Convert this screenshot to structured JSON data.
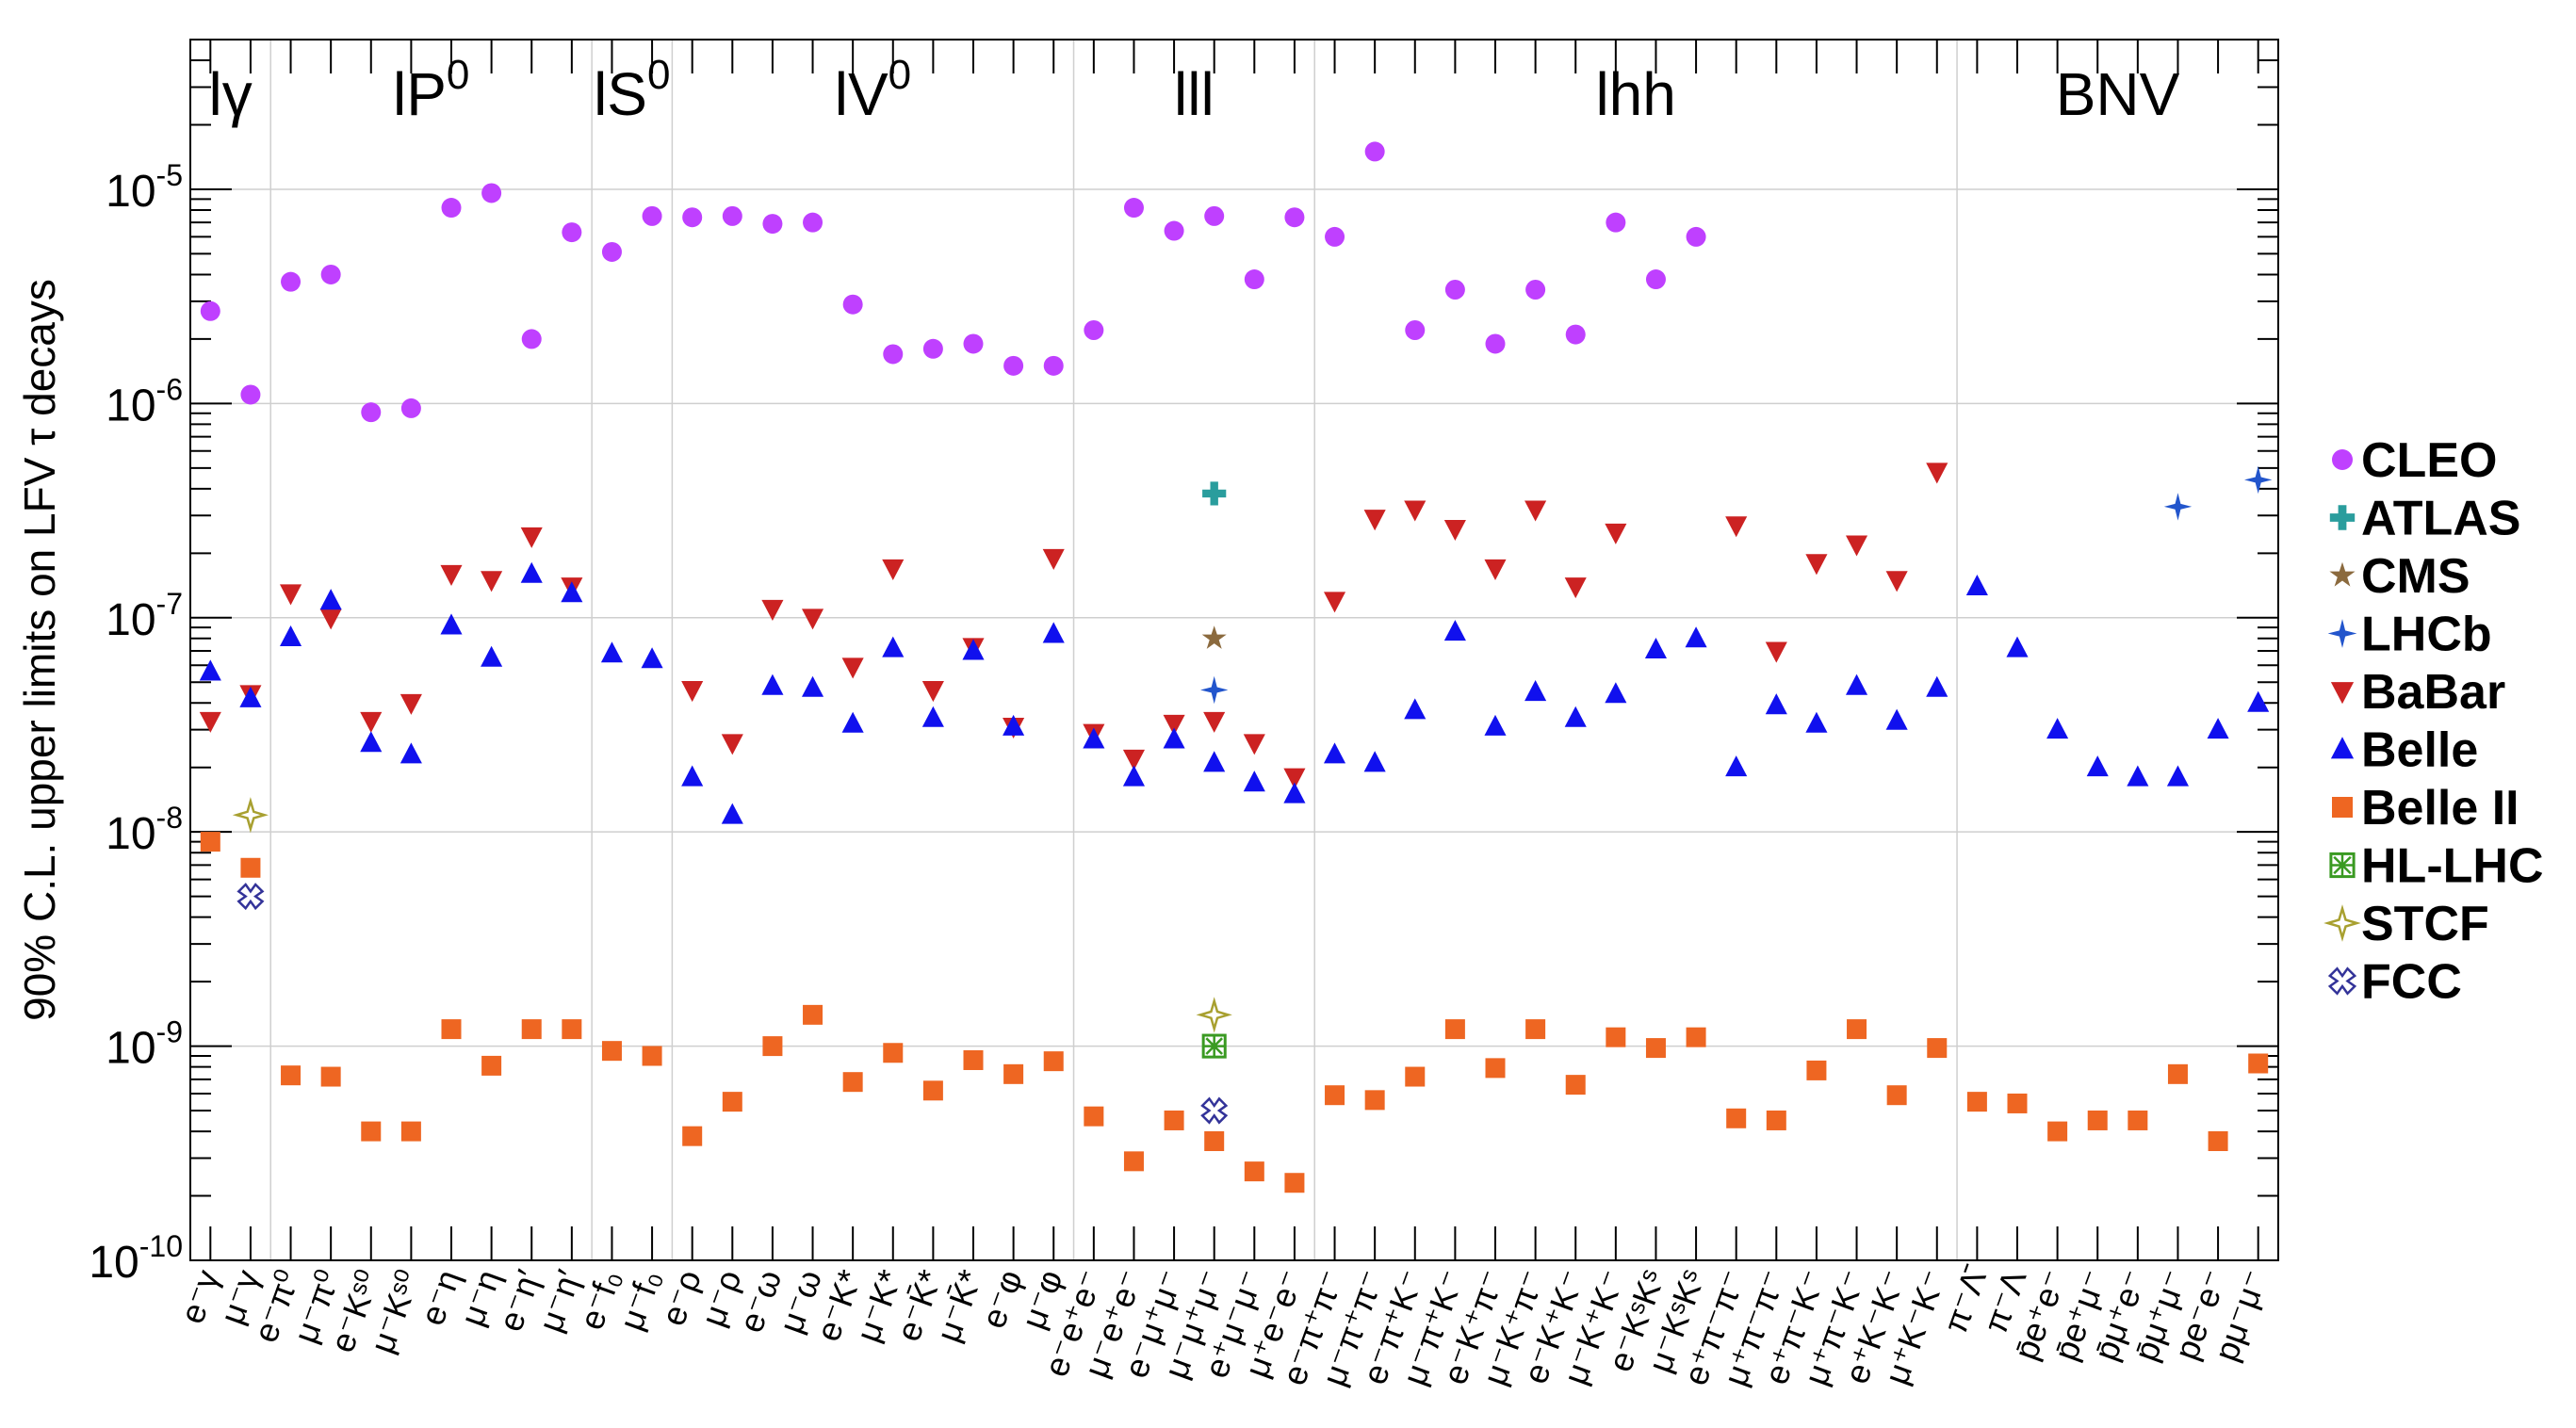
{
  "chart_data": {
    "type": "scatter",
    "ylabel": "90% C.L. upper limits on LFV τ decays",
    "yscale": "log",
    "ylim": [
      1e-10,
      5e-05
    ],
    "ytick_labels": [
      "10^-10",
      "10^-9",
      "10^-8",
      "10^-7",
      "10^-6",
      "10^-5"
    ],
    "groups": [
      {
        "label": "lγ",
        "base": "lγ",
        "sup": "",
        "range": [
          0,
          2
        ]
      },
      {
        "label": "lP0",
        "base": "lP",
        "sup": "0",
        "range": [
          2,
          10
        ]
      },
      {
        "label": "lS0",
        "base": "lS",
        "sup": "0",
        "range": [
          10,
          12
        ]
      },
      {
        "label": "lV0",
        "base": "lV",
        "sup": "0",
        "range": [
          12,
          22
        ]
      },
      {
        "label": "lll",
        "base": "lll",
        "sup": "",
        "range": [
          22,
          28
        ]
      },
      {
        "label": "lhh",
        "base": "lhh",
        "sup": "",
        "range": [
          28,
          44
        ]
      },
      {
        "label": "BNV",
        "base": "BNV",
        "sup": "",
        "range": [
          44,
          52
        ]
      }
    ],
    "categories": [
      "e⁻γ",
      "μ⁻γ",
      "e⁻π⁰",
      "μ⁻π⁰",
      "e⁻Kˢ⁰",
      "μ⁻Kˢ⁰",
      "e⁻η",
      "μ⁻η",
      "e⁻η′",
      "μ⁻η′",
      "e⁻f₀",
      "μ⁻f₀",
      "e⁻ρ",
      "μ⁻ρ",
      "e⁻ω",
      "μ⁻ω",
      "e⁻K*",
      "μ⁻K*",
      "e⁻K̄*",
      "μ⁻K̄*",
      "e⁻φ",
      "μ⁻φ",
      "e⁻e⁺e⁻",
      "μ⁻e⁺e⁻",
      "e⁻μ⁺μ⁻",
      "μ⁻μ⁺μ⁻",
      "e⁺μ⁻μ⁻",
      "μ⁺e⁻e⁻",
      "e⁻π⁺π⁻",
      "μ⁻π⁺π⁻",
      "e⁻π⁺K⁻",
      "μ⁻π⁺K⁻",
      "e⁻K⁺π⁻",
      "μ⁻K⁺π⁻",
      "e⁻K⁺K⁻",
      "μ⁻K⁺K⁻",
      "e⁻KˢKˢ",
      "μ⁻KˢKˢ",
      "e⁺π⁻π⁻",
      "μ⁺π⁻π⁻",
      "e⁺π⁻K⁻",
      "μ⁺π⁻K⁻",
      "e⁺K⁻K⁻",
      "μ⁺K⁻K⁻",
      "π⁻Λ̄",
      "π⁻Λ",
      "p̄e⁺e⁻",
      "p̄e⁺μ⁻",
      "p̄μ⁺e⁻",
      "p̄μ⁺μ⁻",
      "pe⁻e⁻",
      "pμ⁻μ⁻"
    ],
    "series": [
      {
        "name": "CLEO",
        "color": "#bf40ff",
        "marker": "circle",
        "points": [
          [
            0,
            2.7e-06
          ],
          [
            1,
            1.1e-06
          ],
          [
            2,
            3.7e-06
          ],
          [
            3,
            4e-06
          ],
          [
            4,
            9.1e-07
          ],
          [
            5,
            9.5e-07
          ],
          [
            6,
            8.2e-06
          ],
          [
            7,
            9.6e-06
          ],
          [
            8,
            2e-06
          ],
          [
            9,
            6.3e-06
          ],
          [
            10,
            5.1e-06
          ],
          [
            11,
            7.5e-06
          ],
          [
            12,
            7.4e-06
          ],
          [
            13,
            7.5e-06
          ],
          [
            14,
            6.9e-06
          ],
          [
            15,
            7e-06
          ],
          [
            16,
            2.9e-06
          ],
          [
            17,
            1.7e-06
          ],
          [
            18,
            1.8e-06
          ],
          [
            19,
            1.9e-06
          ],
          [
            20,
            1.5e-06
          ],
          [
            21,
            1.5e-06
          ],
          [
            22,
            2.2e-06
          ],
          [
            23,
            8.2e-06
          ],
          [
            24,
            6.4e-06
          ],
          [
            25,
            7.5e-06
          ],
          [
            26,
            3.8e-06
          ],
          [
            27,
            7.4e-06
          ],
          [
            28,
            6e-06
          ],
          [
            29,
            1.5e-05
          ],
          [
            30,
            2.2e-06
          ],
          [
            31,
            3.4e-06
          ],
          [
            32,
            1.9e-06
          ],
          [
            33,
            3.4e-06
          ],
          [
            34,
            2.1e-06
          ],
          [
            35,
            7e-06
          ],
          [
            36,
            3.8e-06
          ],
          [
            37,
            6e-06
          ]
        ]
      },
      {
        "name": "ATLAS",
        "color": "#2a9d9d",
        "marker": "plus",
        "points": [
          [
            25,
            3.8e-07
          ]
        ]
      },
      {
        "name": "CMS",
        "color": "#8b6a3e",
        "marker": "star",
        "points": [
          [
            25,
            8e-08
          ]
        ]
      },
      {
        "name": "LHCb",
        "color": "#2255cc",
        "marker": "star4",
        "points": [
          [
            25,
            4.6e-08
          ],
          [
            49,
            3.3e-07
          ],
          [
            51,
            4.4e-07
          ]
        ]
      },
      {
        "name": "BaBar",
        "color": "#cc2222",
        "marker": "triangle-down",
        "points": [
          [
            0,
            3.3e-08
          ],
          [
            1,
            4.4e-08
          ],
          [
            2,
            1.3e-07
          ],
          [
            3,
            1e-07
          ],
          [
            4,
            3.3e-08
          ],
          [
            5,
            4e-08
          ],
          [
            6,
            1.6e-07
          ],
          [
            7,
            1.5e-07
          ],
          [
            8,
            2.4e-07
          ],
          [
            9,
            1.4e-07
          ],
          [
            12,
            4.6e-08
          ],
          [
            13,
            2.6e-08
          ],
          [
            14,
            1.1e-07
          ],
          [
            15,
            1e-07
          ],
          [
            16,
            5.9e-08
          ],
          [
            17,
            1.7e-07
          ],
          [
            18,
            4.6e-08
          ],
          [
            19,
            7.3e-08
          ],
          [
            20,
            3.1e-08
          ],
          [
            21,
            1.9e-07
          ],
          [
            22,
            2.9e-08
          ],
          [
            23,
            2.2e-08
          ],
          [
            24,
            3.2e-08
          ],
          [
            25,
            3.3e-08
          ],
          [
            26,
            2.6e-08
          ],
          [
            27,
            1.8e-08
          ],
          [
            28,
            1.2e-07
          ],
          [
            29,
            2.9e-07
          ],
          [
            30,
            3.2e-07
          ],
          [
            31,
            2.6e-07
          ],
          [
            32,
            1.7e-07
          ],
          [
            33,
            3.2e-07
          ],
          [
            34,
            1.4e-07
          ],
          [
            35,
            2.5e-07
          ],
          [
            38,
            2.7e-07
          ],
          [
            39,
            7e-08
          ],
          [
            40,
            1.8e-07
          ],
          [
            41,
            2.2e-07
          ],
          [
            42,
            1.5e-07
          ],
          [
            43,
            4.8e-07
          ]
        ]
      },
      {
        "name": "Belle",
        "color": "#1010ee",
        "marker": "triangle-up",
        "points": [
          [
            0,
            5.6e-08
          ],
          [
            1,
            4.2e-08
          ],
          [
            2,
            8.1e-08
          ],
          [
            3,
            1.2e-07
          ],
          [
            4,
            2.6e-08
          ],
          [
            5,
            2.3e-08
          ],
          [
            6,
            9.2e-08
          ],
          [
            7,
            6.5e-08
          ],
          [
            8,
            1.6e-07
          ],
          [
            9,
            1.3e-07
          ],
          [
            10,
            6.8e-08
          ],
          [
            11,
            6.4e-08
          ],
          [
            12,
            1.8e-08
          ],
          [
            13,
            1.2e-08
          ],
          [
            14,
            4.8e-08
          ],
          [
            15,
            4.7e-08
          ],
          [
            16,
            3.2e-08
          ],
          [
            17,
            7.2e-08
          ],
          [
            18,
            3.4e-08
          ],
          [
            19,
            7e-08
          ],
          [
            20,
            3.1e-08
          ],
          [
            21,
            8.4e-08
          ],
          [
            22,
            2.7e-08
          ],
          [
            23,
            1.8e-08
          ],
          [
            24,
            2.7e-08
          ],
          [
            25,
            2.1e-08
          ],
          [
            26,
            1.7e-08
          ],
          [
            27,
            1.5e-08
          ],
          [
            28,
            2.3e-08
          ],
          [
            29,
            2.1e-08
          ],
          [
            30,
            3.7e-08
          ],
          [
            31,
            8.6e-08
          ],
          [
            32,
            3.1e-08
          ],
          [
            33,
            4.5e-08
          ],
          [
            34,
            3.4e-08
          ],
          [
            35,
            4.4e-08
          ],
          [
            36,
            7.1e-08
          ],
          [
            37,
            8e-08
          ],
          [
            38,
            2e-08
          ],
          [
            39,
            3.9e-08
          ],
          [
            40,
            3.2e-08
          ],
          [
            41,
            4.8e-08
          ],
          [
            42,
            3.3e-08
          ],
          [
            43,
            4.7e-08
          ],
          [
            44,
            1.4e-07
          ],
          [
            45,
            7.2e-08
          ],
          [
            46,
            3e-08
          ],
          [
            47,
            2e-08
          ],
          [
            48,
            1.8e-08
          ],
          [
            49,
            1.8e-08
          ],
          [
            50,
            3e-08
          ],
          [
            51,
            4e-08
          ]
        ]
      },
      {
        "name": "Belle II",
        "color": "#ee6622",
        "marker": "square",
        "points": [
          [
            0,
            9e-09
          ],
          [
            1,
            6.8e-09
          ],
          [
            2,
            7.3e-10
          ],
          [
            3,
            7.2e-10
          ],
          [
            4,
            4e-10
          ],
          [
            5,
            4e-10
          ],
          [
            6,
            1.2e-09
          ],
          [
            7,
            8.1e-10
          ],
          [
            8,
            1.2e-09
          ],
          [
            9,
            1.2e-09
          ],
          [
            10,
            9.5e-10
          ],
          [
            11,
            9e-10
          ],
          [
            12,
            3.8e-10
          ],
          [
            13,
            5.5e-10
          ],
          [
            14,
            1e-09
          ],
          [
            15,
            1.4e-09
          ],
          [
            16,
            6.8e-10
          ],
          [
            17,
            9.3e-10
          ],
          [
            18,
            6.2e-10
          ],
          [
            19,
            8.6e-10
          ],
          [
            20,
            7.4e-10
          ],
          [
            21,
            8.5e-10
          ],
          [
            22,
            4.7e-10
          ],
          [
            23,
            2.9e-10
          ],
          [
            24,
            4.5e-10
          ],
          [
            25,
            3.6e-10
          ],
          [
            26,
            2.6e-10
          ],
          [
            27,
            2.3e-10
          ],
          [
            28,
            5.9e-10
          ],
          [
            29,
            5.6e-10
          ],
          [
            30,
            7.2e-10
          ],
          [
            31,
            1.2e-09
          ],
          [
            32,
            7.9e-10
          ],
          [
            33,
            1.2e-09
          ],
          [
            34,
            6.6e-10
          ],
          [
            35,
            1.1e-09
          ],
          [
            36,
            9.8e-10
          ],
          [
            37,
            1.1e-09
          ],
          [
            38,
            4.6e-10
          ],
          [
            39,
            4.5e-10
          ],
          [
            40,
            7.7e-10
          ],
          [
            41,
            1.2e-09
          ],
          [
            42,
            5.9e-10
          ],
          [
            43,
            9.8e-10
          ],
          [
            44,
            5.5e-10
          ],
          [
            45,
            5.4e-10
          ],
          [
            46,
            4e-10
          ],
          [
            47,
            4.5e-10
          ],
          [
            48,
            4.5e-10
          ],
          [
            49,
            7.4e-10
          ],
          [
            50,
            3.6e-10
          ],
          [
            51,
            8.3e-10
          ]
        ]
      },
      {
        "name": "HL-LHC",
        "color": "#3a9a22",
        "marker": "boxstar",
        "points": [
          [
            25,
            1e-09
          ]
        ]
      },
      {
        "name": "STCF",
        "color": "#a8a030",
        "marker": "star4open",
        "points": [
          [
            1,
            1.2e-08
          ],
          [
            25,
            1.4e-09
          ]
        ]
      },
      {
        "name": "FCC",
        "color": "#333399",
        "marker": "xopen",
        "points": [
          [
            1,
            5e-09
          ],
          [
            25,
            5e-10
          ]
        ]
      }
    ]
  }
}
